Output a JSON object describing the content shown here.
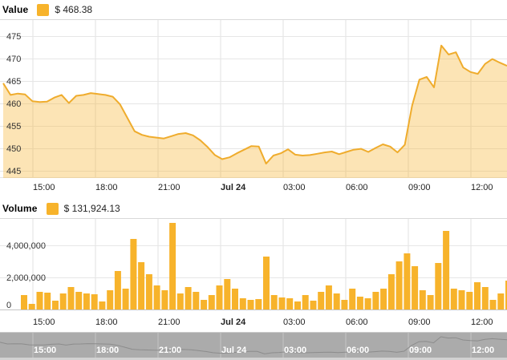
{
  "value_panel": {
    "legend_title": "Value",
    "legend_value": "$ 468.38"
  },
  "volume_panel": {
    "legend_title": "Volume",
    "legend_value": "$ 131,924.13"
  },
  "colors": {
    "accent_gold": "#F7B32B",
    "line_gold": "#EFAC2D",
    "area_fill_opacity": "0.35",
    "grid_light": "#E6E6E6",
    "grid_vertical": "#E0E0E0",
    "axis_text": "#333333",
    "separator": "#D9D9D9",
    "axis_line": "#C4C4C4",
    "navigator_bg": "#ABABAB",
    "navigator_grid": "#C6C6C6",
    "navigator_line": "#8C8C8C",
    "navigator_text": "#FFFFFF",
    "scrollbar_strip": "#D2D2D2"
  },
  "chart_data": [
    {
      "type": "area",
      "title": "Value",
      "current_value_label": "$ 468.38",
      "x_tick_labels": [
        "15:00",
        "18:00",
        "21:00",
        "Jul 24",
        "03:00",
        "06:00",
        "09:00",
        "12:00"
      ],
      "y_ticks": [
        445,
        450,
        455,
        460,
        465,
        470,
        475
      ],
      "ylim": [
        443.4,
        478.75
      ],
      "grid": true,
      "legend_position": "top-left",
      "values": [
        464.5,
        461.9,
        462.2,
        462.0,
        460.5,
        460.3,
        460.4,
        461.3,
        461.9,
        460.1,
        461.7,
        461.9,
        462.3,
        462.1,
        461.9,
        461.5,
        459.8,
        456.8,
        453.8,
        453.0,
        452.6,
        452.4,
        452.2,
        452.7,
        453.2,
        453.4,
        452.9,
        451.8,
        450.3,
        448.5,
        447.6,
        448.0,
        448.9,
        449.7,
        450.5,
        450.4,
        446.6,
        448.4,
        448.9,
        449.8,
        448.6,
        448.4,
        448.5,
        448.8,
        449.1,
        449.3,
        448.7,
        449.2,
        449.7,
        449.9,
        449.2,
        450.1,
        450.9,
        450.4,
        449.1,
        450.8,
        459.5,
        465.3,
        465.9,
        463.6,
        472.9,
        470.9,
        471.4,
        468.0,
        467.0,
        466.6,
        468.8,
        469.9,
        469.1,
        468.38
      ]
    },
    {
      "type": "bar",
      "title": "Volume",
      "current_value_label": "$ 131,924.13",
      "x_tick_labels": [
        "15:00",
        "18:00",
        "21:00",
        "Jul 24",
        "03:00",
        "06:00",
        "09:00",
        "12:00"
      ],
      "y_ticks": [
        0,
        2000000,
        4000000
      ],
      "y_tick_labels": [
        "0",
        "2,000,000",
        "4,000,000"
      ],
      "ylim": [
        0,
        5700000
      ],
      "values": [
        900000,
        350000,
        1100000,
        1050000,
        550000,
        1000000,
        1400000,
        1100000,
        1000000,
        950000,
        500000,
        1200000,
        2400000,
        1300000,
        4400000,
        2950000,
        2200000,
        1500000,
        1200000,
        5400000,
        1000000,
        1400000,
        1100000,
        600000,
        900000,
        1500000,
        1900000,
        1300000,
        700000,
        600000,
        650000,
        3300000,
        900000,
        750000,
        700000,
        500000,
        900000,
        550000,
        1100000,
        1500000,
        1000000,
        600000,
        1300000,
        800000,
        700000,
        1100000,
        1300000,
        2200000,
        3000000,
        3500000,
        2700000,
        1200000,
        900000,
        2900000,
        4900000,
        1300000,
        1200000,
        1100000,
        1700000,
        1400000,
        600000,
        1000000,
        1800000
      ]
    },
    {
      "type": "line",
      "title": "Navigator",
      "x_tick_labels": [
        "15:00",
        "18:00",
        "21:00",
        "Jul 24",
        "03:00",
        "06:00",
        "09:00",
        "12:00"
      ],
      "ylim": [
        441,
        479
      ],
      "values_from": "Value series (chart_data[0].values)"
    }
  ]
}
